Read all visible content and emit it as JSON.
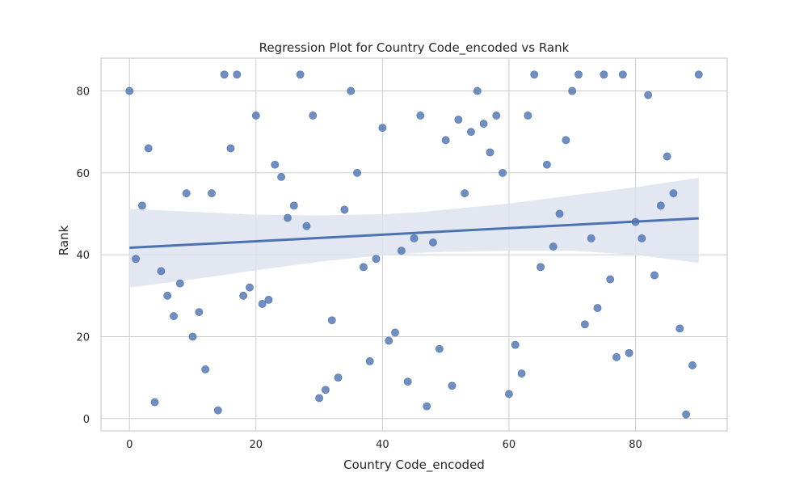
{
  "chart_data": {
    "type": "scatter",
    "title": "Regression Plot for Country Code_encoded vs Rank",
    "xlabel": "Country Code_encoded",
    "ylabel": "Rank",
    "xlim": [
      -4.5,
      94.5
    ],
    "ylim": [
      -3,
      88
    ],
    "x_ticks": [
      0,
      20,
      40,
      60,
      80
    ],
    "y_ticks": [
      0,
      20,
      40,
      60,
      80
    ],
    "grid": true,
    "colors": {
      "points": "#4c72b0",
      "line": "#4c72b0",
      "band": "#dde3f0",
      "grid": "#cccccc",
      "axes": "#cccccc"
    },
    "series": [
      {
        "points": [
          [
            0,
            80
          ],
          [
            1,
            39
          ],
          [
            2,
            52
          ],
          [
            3,
            66
          ],
          [
            4,
            4
          ],
          [
            5,
            36
          ],
          [
            6,
            30
          ],
          [
            7,
            25
          ],
          [
            8,
            33
          ],
          [
            9,
            55
          ],
          [
            10,
            20
          ],
          [
            11,
            26
          ],
          [
            12,
            12
          ],
          [
            13,
            55
          ],
          [
            14,
            2
          ],
          [
            15,
            84
          ],
          [
            16,
            66
          ],
          [
            17,
            84
          ],
          [
            18,
            30
          ],
          [
            19,
            32
          ],
          [
            20,
            74
          ],
          [
            21,
            28
          ],
          [
            22,
            29
          ],
          [
            23,
            62
          ],
          [
            24,
            59
          ],
          [
            25,
            49
          ],
          [
            26,
            52
          ],
          [
            27,
            84
          ],
          [
            28,
            47
          ],
          [
            29,
            74
          ],
          [
            30,
            5
          ],
          [
            31,
            7
          ],
          [
            32,
            24
          ],
          [
            33,
            10
          ],
          [
            34,
            51
          ],
          [
            35,
            80
          ],
          [
            36,
            60
          ],
          [
            37,
            37
          ],
          [
            38,
            14
          ],
          [
            39,
            39
          ],
          [
            40,
            71
          ],
          [
            41,
            19
          ],
          [
            42,
            21
          ],
          [
            43,
            41
          ],
          [
            44,
            9
          ],
          [
            45,
            44
          ],
          [
            46,
            74
          ],
          [
            47,
            3
          ],
          [
            48,
            43
          ],
          [
            49,
            17
          ],
          [
            50,
            68
          ],
          [
            51,
            8
          ],
          [
            52,
            73
          ],
          [
            53,
            55
          ],
          [
            54,
            70
          ],
          [
            55,
            80
          ],
          [
            56,
            72
          ],
          [
            57,
            65
          ],
          [
            58,
            74
          ],
          [
            59,
            60
          ],
          [
            60,
            6
          ],
          [
            61,
            18
          ],
          [
            62,
            11
          ],
          [
            63,
            74
          ],
          [
            64,
            84
          ],
          [
            65,
            37
          ],
          [
            66,
            62
          ],
          [
            67,
            42
          ],
          [
            68,
            50
          ],
          [
            69,
            68
          ],
          [
            70,
            80
          ],
          [
            71,
            84
          ],
          [
            72,
            23
          ],
          [
            73,
            44
          ],
          [
            74,
            27
          ],
          [
            75,
            84
          ],
          [
            76,
            34
          ],
          [
            77,
            15
          ],
          [
            78,
            84
          ],
          [
            79,
            16
          ],
          [
            80,
            48
          ],
          [
            81,
            44
          ],
          [
            82,
            79
          ],
          [
            83,
            35
          ],
          [
            84,
            52
          ],
          [
            85,
            64
          ],
          [
            86,
            55
          ],
          [
            87,
            22
          ],
          [
            88,
            1
          ],
          [
            89,
            13
          ],
          [
            90,
            84
          ]
        ]
      }
    ],
    "regression_line": {
      "x": [
        0,
        90
      ],
      "y": [
        41.7,
        48.9
      ]
    },
    "confidence_band": {
      "x": [
        0,
        10,
        20,
        30,
        40,
        45,
        50,
        60,
        70,
        80,
        90
      ],
      "upper": [
        51.2,
        50.5,
        49.8,
        49.6,
        49.9,
        50.3,
        51.0,
        52.5,
        54.5,
        56.5,
        58.8
      ],
      "lower": [
        32.0,
        34.0,
        36.2,
        38.3,
        39.9,
        40.4,
        40.7,
        41.0,
        41.0,
        40.0,
        38.0
      ]
    }
  }
}
